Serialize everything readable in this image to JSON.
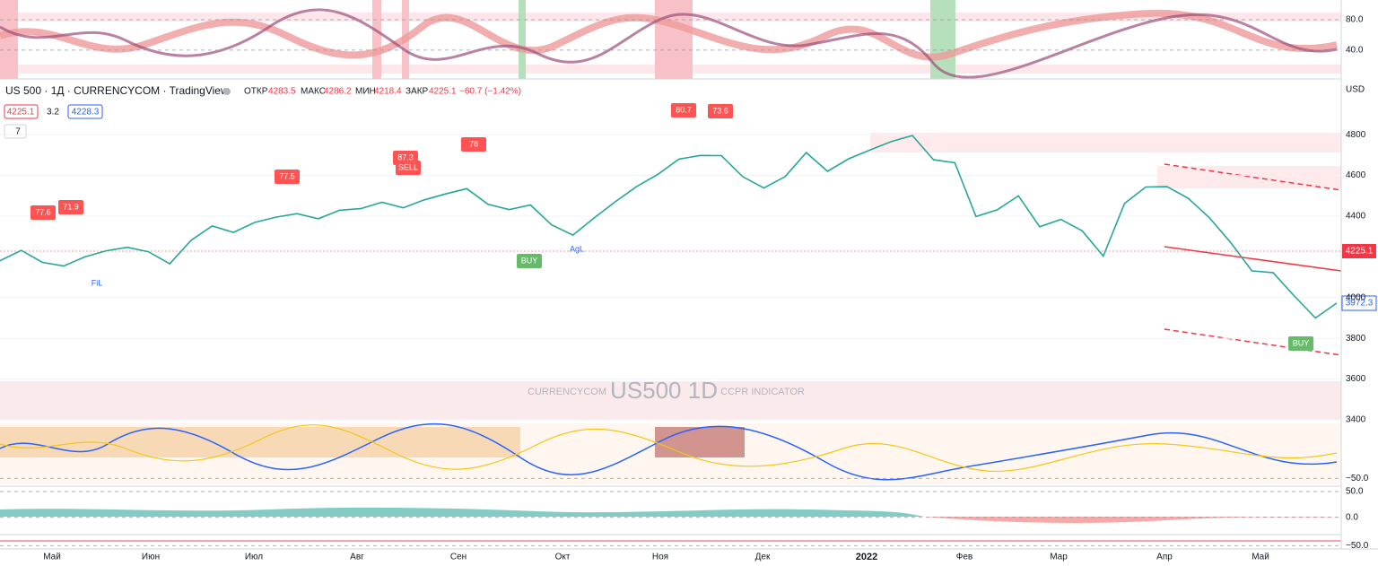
{
  "header": {
    "symbol": "US 500 · 1Д · CURRENCYCOM · TradingView",
    "open_label": "ОТКР",
    "open": 4283.5,
    "high_label": "МАКС",
    "high": 4286.2,
    "low_label": "МИН",
    "low": 4218.4,
    "close_label": "ЗАКР",
    "close": 4225.1,
    "change": "−60.7 (−1.42%)",
    "bid": 4225.1,
    "spread": 3.2,
    "ask": 4228.3,
    "indicators_count": 7
  },
  "currency": "USD",
  "price_tags": [
    4225.1,
    3972.3
  ],
  "watermark": {
    "main": "US500 1D",
    "source": "CURRENCYCOM",
    "indicator": "CCPR INDICATOR"
  },
  "time_axis": [
    "Май",
    "Июн",
    "Июл",
    "Авг",
    "Сен",
    "Окт",
    "Ноя",
    "Дек",
    "2022",
    "Фев",
    "Мар",
    "Апр",
    "Май"
  ],
  "annotations": [
    "77.6",
    "71.9",
    "77.5",
    "87.3",
    "SELL",
    "78",
    "80.7",
    "73.6",
    "BUY",
    "BUY",
    "FiL",
    "AgL"
  ],
  "chart_data": {
    "type": "line",
    "color": "#26a69a",
    "values": [
      4181,
      4232,
      4173,
      4155,
      4200,
      4230,
      4247,
      4225,
      4166,
      4281,
      4352,
      4320,
      4369,
      4395,
      4412,
      4387,
      4429,
      4437,
      4468,
      4441,
      4480,
      4509,
      4535,
      4458,
      4432,
      4455,
      4357,
      4307,
      4391,
      4471,
      4545,
      4605,
      4680,
      4698,
      4697,
      4594,
      4538,
      4594,
      4712,
      4620,
      4682,
      4725,
      4766,
      4796,
      4677,
      4662,
      4398,
      4431,
      4500,
      4348,
      4384,
      4328,
      4204,
      4463,
      4543,
      4545,
      4488,
      4392,
      4271,
      4131,
      4123,
      4008,
      3900,
      3973
    ],
    "ylim": [
      3400,
      5065
    ],
    "yticks": [
      4800,
      4600,
      4400,
      4000,
      3800,
      3600,
      3400
    ]
  },
  "top_panel": {
    "ylim": [
      2,
      106
    ],
    "yticks": [
      {
        "value": 80,
        "label": "80.0"
      },
      {
        "value": 40,
        "label": "40.0"
      }
    ]
  },
  "osc_panel": {
    "ylim": [
      -62,
      62
    ],
    "yticks": [
      {
        "value": -50,
        "label": "−50.0"
      }
    ]
  },
  "hist_panel": {
    "ylim": [
      -30,
      57
    ],
    "yticks": [
      {
        "value": 50,
        "label": "50.0"
      },
      {
        "value": 0,
        "label": "0.0"
      }
    ]
  },
  "bottom_panel": {
    "ylim": [
      -60,
      10
    ],
    "yticks": [
      {
        "value": -50,
        "label": "−50.0"
      }
    ]
  }
}
